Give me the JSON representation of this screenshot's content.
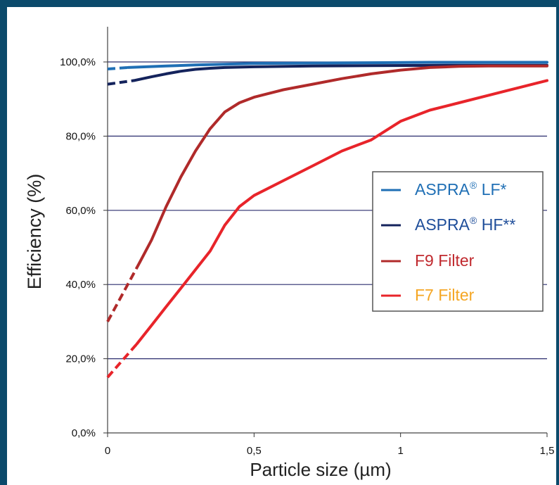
{
  "chart_data": {
    "type": "line",
    "xlabel": "Particle size (µm)",
    "ylabel": "Efficiency (%)",
    "xlim": [
      0,
      1.5
    ],
    "ylim": [
      0,
      1.0
    ],
    "x_ticks": [
      "0",
      "0,5",
      "1",
      "1,5"
    ],
    "x_tick_values": [
      0,
      0.5,
      1,
      1.5
    ],
    "y_ticks": [
      "0,0%",
      "20,0%",
      "40,0%",
      "60,0%",
      "80,0%",
      "100,0%"
    ],
    "y_tick_values": [
      0,
      0.2,
      0.4,
      0.6,
      0.8,
      1.0
    ],
    "grid": "horizontal",
    "legend_position": "right",
    "series": [
      {
        "name": "ASPRA® LF*",
        "legend_main": "ASPRA",
        "legend_sup": "®",
        "legend_tail": " LF*",
        "color": "#1f6fb5",
        "label_color": "#1f6fb5",
        "dashed_x": [
          0,
          0.07
        ],
        "dashed_y": [
          0.981,
          0.985
        ],
        "x": [
          0.07,
          0.2,
          0.3,
          0.4,
          0.5,
          0.7,
          0.9,
          1.1,
          1.3,
          1.5
        ],
        "y": [
          0.985,
          0.989,
          0.992,
          0.994,
          0.996,
          0.997,
          0.998,
          0.999,
          0.999,
          0.999
        ]
      },
      {
        "name": "ASPRA® HF**",
        "legend_main": "ASPRA",
        "legend_sup": "®",
        "legend_tail": " HF**",
        "color": "#14235c",
        "label_color": "#1f4e9a",
        "dashed_x": [
          0,
          0.09
        ],
        "dashed_y": [
          0.94,
          0.95
        ],
        "x": [
          0.09,
          0.15,
          0.2,
          0.25,
          0.3,
          0.35,
          0.4,
          0.5,
          0.7,
          0.9,
          1.2,
          1.5
        ],
        "y": [
          0.95,
          0.96,
          0.968,
          0.975,
          0.98,
          0.983,
          0.985,
          0.987,
          0.989,
          0.99,
          0.991,
          0.991
        ]
      },
      {
        "name": "F9 Filter",
        "legend_main": "F9 Filter",
        "legend_sup": "",
        "legend_tail": "",
        "color": "#b02a2a",
        "label_color": "#c0292e",
        "dashed_x": [
          0,
          0.11
        ],
        "dashed_y": [
          0.3,
          0.46
        ],
        "x": [
          0.11,
          0.15,
          0.2,
          0.25,
          0.3,
          0.35,
          0.4,
          0.45,
          0.5,
          0.6,
          0.7,
          0.8,
          0.9,
          1.0,
          1.1,
          1.2,
          1.3,
          1.5
        ],
        "y": [
          0.46,
          0.52,
          0.61,
          0.69,
          0.76,
          0.82,
          0.865,
          0.89,
          0.905,
          0.925,
          0.94,
          0.955,
          0.968,
          0.978,
          0.985,
          0.988,
          0.989,
          0.989
        ]
      },
      {
        "name": "F7 Filter",
        "legend_main": "F7 Filter",
        "legend_sup": "",
        "legend_tail": "",
        "color": "#e8242a",
        "label_color": "#f5a623",
        "dashed_x": [
          0,
          0.1
        ],
        "dashed_y": [
          0.15,
          0.24
        ],
        "x": [
          0.1,
          0.15,
          0.2,
          0.25,
          0.3,
          0.35,
          0.4,
          0.45,
          0.5,
          0.6,
          0.7,
          0.8,
          0.9,
          1.0,
          1.1,
          1.2,
          1.3,
          1.4,
          1.5
        ],
        "y": [
          0.24,
          0.29,
          0.34,
          0.39,
          0.44,
          0.49,
          0.56,
          0.61,
          0.64,
          0.68,
          0.72,
          0.76,
          0.79,
          0.84,
          0.87,
          0.89,
          0.91,
          0.93,
          0.95
        ]
      }
    ]
  }
}
